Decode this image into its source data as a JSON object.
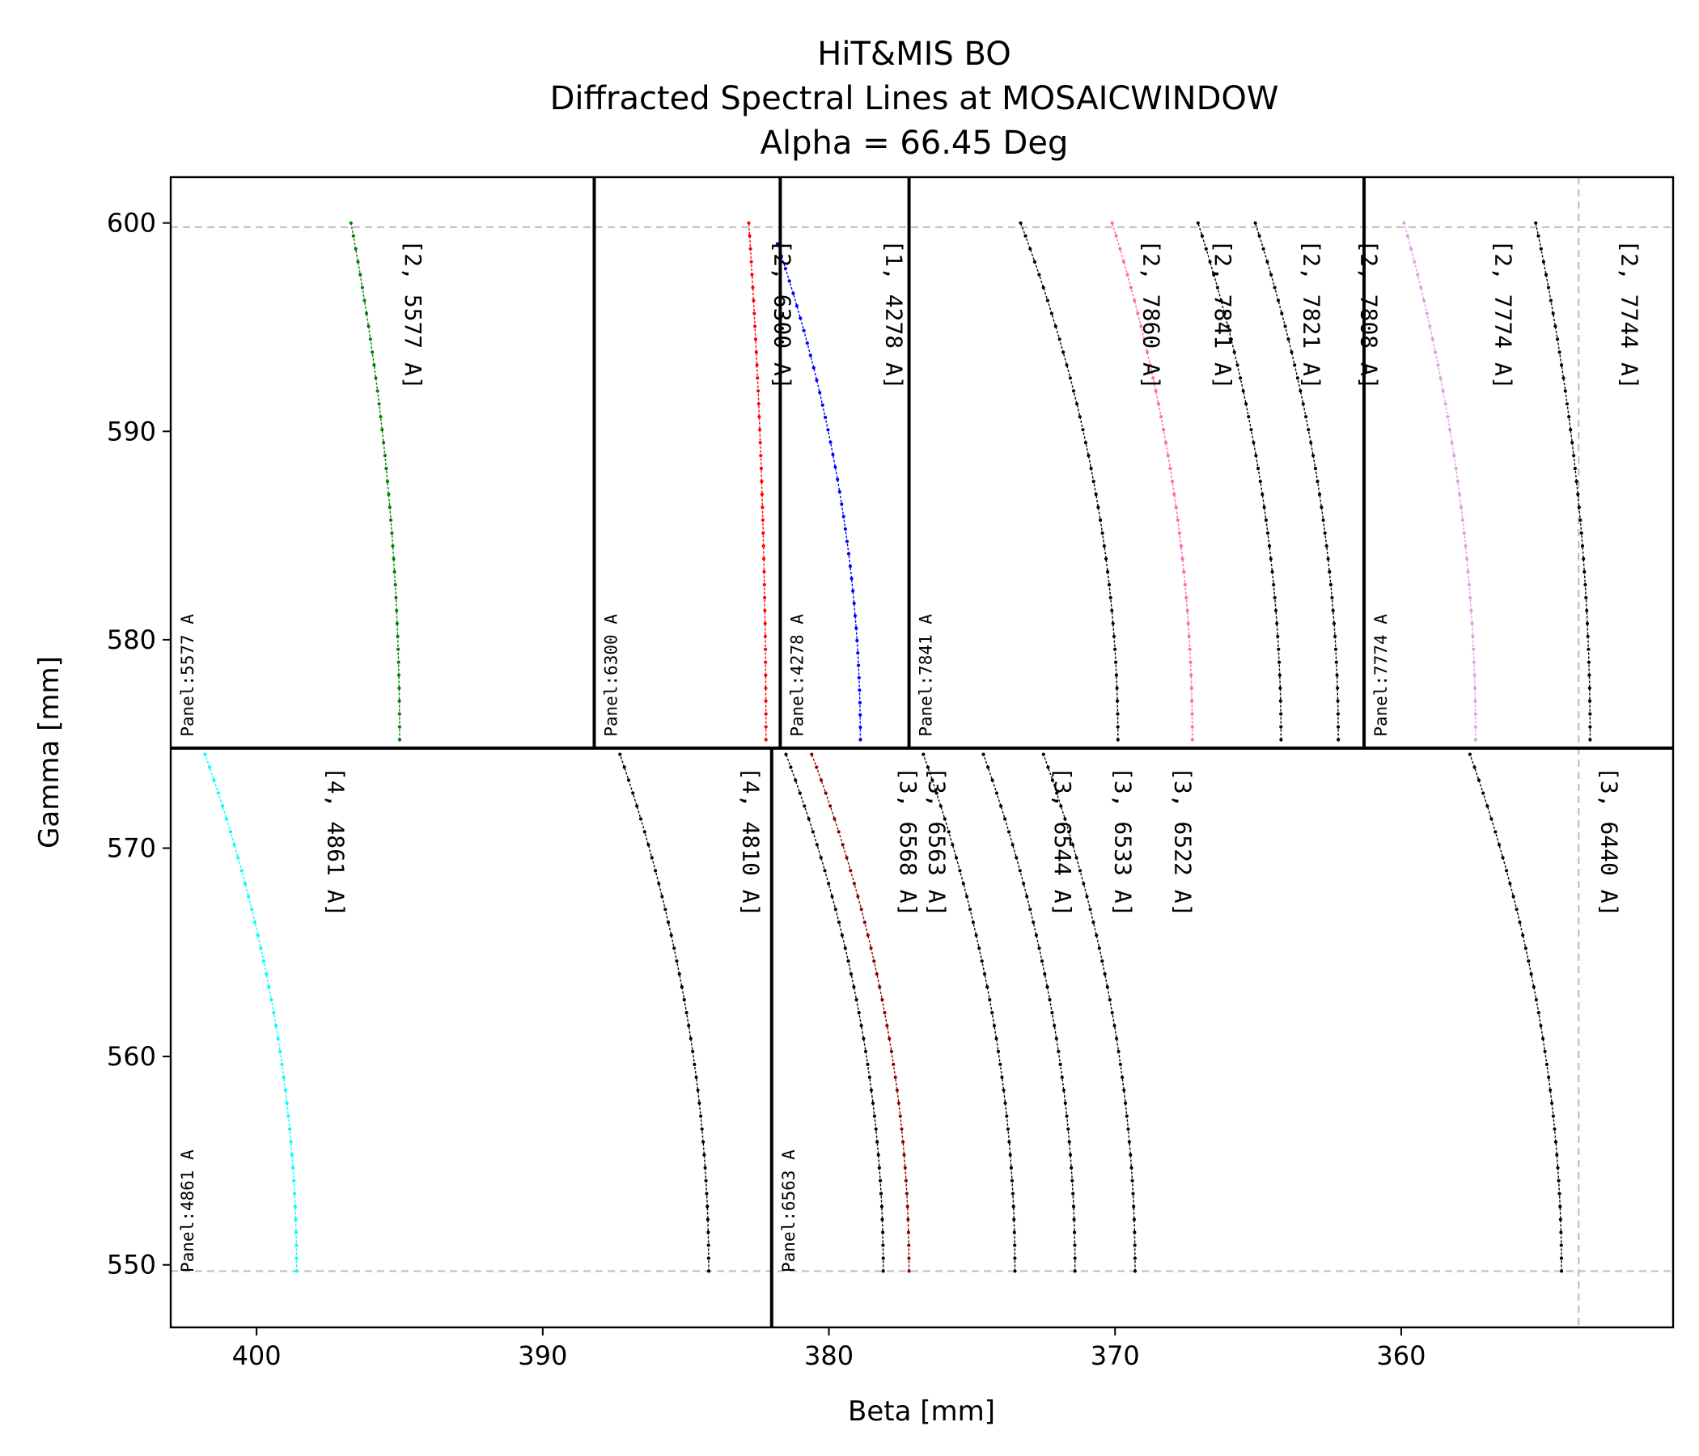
{
  "chart_data": {
    "type": "line",
    "title": [
      "HiT&MIS BO",
      "Diffracted Spectral Lines at MOSAICWINDOW",
      "Alpha = 66.45 Deg"
    ],
    "xlabel": "Beta [mm]",
    "ylabel": "Gamma [mm]",
    "xlim": [
      403,
      350.5
    ],
    "ylim": [
      547,
      602.2
    ],
    "x_inverted": true,
    "xticks": [
      400,
      390,
      380,
      370,
      360
    ],
    "yticks": [
      550,
      560,
      570,
      580,
      590,
      600
    ],
    "grid": false,
    "reference_lines": {
      "horizontal": [
        599.8,
        549.7
      ],
      "vertical": [
        353.8
      ],
      "style": "dashed",
      "color": "#bfbfbf"
    },
    "panel_boundaries": {
      "row_split_gamma": 574.8,
      "top_row_dividers_beta": [
        388.2,
        381.7,
        377.2,
        361.3
      ],
      "bottom_row_dividers_beta": [
        382.0
      ]
    },
    "panels": [
      {
        "label": "Panel:5577 A",
        "row": "top",
        "beta_left": 403.0
      },
      {
        "label": "Panel:6300 A",
        "row": "top",
        "beta_left": 388.2
      },
      {
        "label": "Panel:4278 A",
        "row": "top",
        "beta_left": 381.7
      },
      {
        "label": "Panel:7841 A",
        "row": "top",
        "beta_left": 377.2
      },
      {
        "label": "Panel:7774 A",
        "row": "top",
        "beta_left": 361.3
      },
      {
        "label": "Panel:4861 A",
        "row": "bottom",
        "beta_left": 403.0
      },
      {
        "label": "Panel:6563 A",
        "row": "bottom",
        "beta_left": 382.0
      }
    ],
    "series": [
      {
        "name": "[2, 5577 A]",
        "color": "#008000",
        "gamma_range": [
          575.2,
          600
        ],
        "beta_end": 396.7,
        "beta_min": 395.0
      },
      {
        "name": "[2, 6300 A]",
        "color": "#ff0000",
        "gamma_range": [
          575.2,
          600
        ],
        "beta_end": 382.8,
        "beta_min": 382.2
      },
      {
        "name": "[1, 4278 A]",
        "color": "#0000ff",
        "gamma_range": [
          575.2,
          599
        ],
        "beta_end": 381.8,
        "beta_min": 378.9
      },
      {
        "name": "[2, 7860 A]",
        "color": "#000000",
        "gamma_range": [
          575.2,
          600
        ],
        "beta_end": 373.3,
        "beta_min": 369.9
      },
      {
        "name": "[2, 7841 A]",
        "color": "#ff69b4",
        "gamma_range": [
          575.2,
          600
        ],
        "beta_end": 370.1,
        "beta_min": 367.3
      },
      {
        "name": "[2, 7821 A]",
        "color": "#000000",
        "gamma_range": [
          575.2,
          600
        ],
        "beta_end": 367.1,
        "beta_min": 364.2
      },
      {
        "name": "[2, 7808 A]",
        "color": "#000000",
        "gamma_range": [
          575.2,
          600
        ],
        "beta_end": 365.1,
        "beta_min": 362.2
      },
      {
        "name": "[2, 7774 A]",
        "color": "#dda0dd",
        "gamma_range": [
          575.2,
          600
        ],
        "beta_end": 359.9,
        "beta_min": 357.4
      },
      {
        "name": "[2, 7744 A]",
        "color": "#000000",
        "gamma_range": [
          575.2,
          600
        ],
        "beta_end": 355.3,
        "beta_min": 353.4
      },
      {
        "name": "[4, 4861 A]",
        "color": "#00ffff",
        "gamma_range": [
          549.7,
          574.5
        ],
        "beta_end": 401.8,
        "beta_min": 398.6
      },
      {
        "name": "[4, 4810 A]",
        "color": "#000000",
        "gamma_range": [
          549.7,
          574.5
        ],
        "beta_end": 387.3,
        "beta_min": 384.2
      },
      {
        "name": "[3, 6563 A]",
        "color": "#000000",
        "gamma_range": [
          549.7,
          574.5
        ],
        "beta_end": 381.5,
        "beta_min": 378.1
      },
      {
        "name": "[3, 6568 A]",
        "color": "#8b0000",
        "gamma_range": [
          549.7,
          574.5
        ],
        "beta_end": 380.6,
        "beta_min": 377.2
      },
      {
        "name": "[3, 6544 A]",
        "color": "#000000",
        "gamma_range": [
          549.7,
          574.5
        ],
        "beta_end": 376.7,
        "beta_min": 373.5
      },
      {
        "name": "[3, 6533 A]",
        "color": "#000000",
        "gamma_range": [
          549.7,
          574.5
        ],
        "beta_end": 374.6,
        "beta_min": 371.4
      },
      {
        "name": "[3, 6522 A]",
        "color": "#000000",
        "gamma_range": [
          549.7,
          574.5
        ],
        "beta_end": 372.5,
        "beta_min": 369.3
      },
      {
        "name": "[3, 6440 A]",
        "color": "#000000",
        "gamma_range": [
          549.7,
          574.5
        ],
        "beta_end": 357.6,
        "beta_min": 354.4
      }
    ],
    "line_labels": [
      {
        "text": "[2, 5577 A]",
        "beta": 394.8,
        "gamma": 599.2
      },
      {
        "text": "[2, 6300 A]",
        "beta": 381.9,
        "gamma": 599.2
      },
      {
        "text": "[1, 4278 A]",
        "beta": 378.0,
        "gamma": 599.2
      },
      {
        "text": "[2, 7860 A]",
        "beta": 369.0,
        "gamma": 599.2
      },
      {
        "text": "[2, 7841 A]",
        "beta": 366.5,
        "gamma": 599.2
      },
      {
        "text": "[2, 7821 A]",
        "beta": 363.4,
        "gamma": 599.2
      },
      {
        "text": "[2, 7808 A]",
        "beta": 361.4,
        "gamma": 599.2
      },
      {
        "text": "[2, 7774 A]",
        "beta": 356.7,
        "gamma": 599.2
      },
      {
        "text": "[2, 7744 A]",
        "beta": 352.3,
        "gamma": 599.2
      },
      {
        "text": "[4, 4861 A]",
        "beta": 397.5,
        "gamma": 573.9
      },
      {
        "text": "[4, 4810 A]",
        "beta": 383.0,
        "gamma": 573.9
      },
      {
        "text": "[3, 6568 A]",
        "beta": 377.5,
        "gamma": 573.9
      },
      {
        "text": "[3, 6563 A]",
        "beta": 376.5,
        "gamma": 573.9
      },
      {
        "text": "[3, 6544 A]",
        "beta": 372.1,
        "gamma": 573.9
      },
      {
        "text": "[3, 6533 A]",
        "beta": 370.0,
        "gamma": 573.9
      },
      {
        "text": "[3, 6522 A]",
        "beta": 367.9,
        "gamma": 573.9
      },
      {
        "text": "[3, 6440 A]",
        "beta": 353.0,
        "gamma": 573.9
      }
    ]
  }
}
